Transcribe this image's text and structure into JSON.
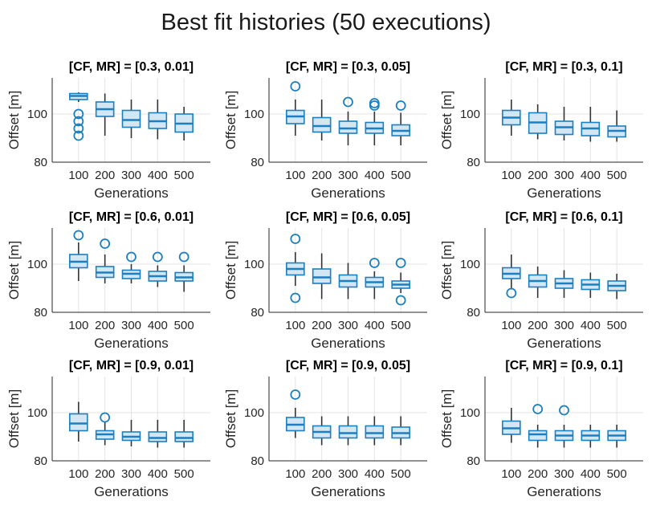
{
  "figure": {
    "title": "Best fit histories (50 executions)",
    "colors": {
      "box_face": "#d3e6f3",
      "box_edge": "#1c7fc0",
      "median": "#1c7fc0",
      "whisker": "#333333",
      "outlier": "#1c7fc0",
      "grid": "#e3e3e3",
      "axis": "#262626"
    }
  },
  "chart_data": [
    {
      "type": "box",
      "title": "[CF, MR] = [0.3, 0.01]",
      "xlabel": "Generations",
      "ylabel": "Offset [m]",
      "categories": [
        "100",
        "200",
        "300",
        "400",
        "500"
      ],
      "ylim": [
        80,
        115
      ],
      "yticks": [
        80,
        100
      ],
      "grid": true,
      "boxes": [
        {
          "whislo": 105,
          "q1": 106,
          "med": 107.5,
          "q3": 108.5,
          "whishi": 109,
          "fliers": [
            91,
            94,
            97,
            100
          ]
        },
        {
          "whislo": 91,
          "q1": 99,
          "med": 102,
          "q3": 105,
          "whishi": 108.5,
          "fliers": []
        },
        {
          "whislo": 90,
          "q1": 94.5,
          "med": 97.5,
          "q3": 101.5,
          "whishi": 106,
          "fliers": []
        },
        {
          "whislo": 89.5,
          "q1": 94,
          "med": 97,
          "q3": 100.5,
          "whishi": 106,
          "fliers": []
        },
        {
          "whislo": 89,
          "q1": 92.5,
          "med": 96,
          "q3": 100,
          "whishi": 103,
          "fliers": []
        }
      ]
    },
    {
      "type": "box",
      "title": "[CF, MR] = [0.3, 0.05]",
      "xlabel": "Generations",
      "ylabel": "Offset [m]",
      "categories": [
        "100",
        "200",
        "300",
        "400",
        "500"
      ],
      "ylim": [
        80,
        115
      ],
      "yticks": [
        80,
        100
      ],
      "grid": true,
      "boxes": [
        {
          "whislo": 91,
          "q1": 96,
          "med": 99,
          "q3": 101.5,
          "whishi": 106,
          "fliers": [
            111.5
          ]
        },
        {
          "whislo": 89,
          "q1": 92.5,
          "med": 95,
          "q3": 98.5,
          "whishi": 106,
          "fliers": []
        },
        {
          "whislo": 87,
          "q1": 92,
          "med": 94,
          "q3": 97,
          "whishi": 101,
          "fliers": [
            105
          ]
        },
        {
          "whislo": 87,
          "q1": 92,
          "med": 94,
          "q3": 96.5,
          "whishi": 101,
          "fliers": [
            103.5,
            104.5
          ]
        },
        {
          "whislo": 87,
          "q1": 91,
          "med": 93,
          "q3": 95.5,
          "whishi": 100.5,
          "fliers": [
            103.5
          ]
        }
      ]
    },
    {
      "type": "box",
      "title": "[CF, MR] = [0.3, 0.1]",
      "xlabel": "Generations",
      "ylabel": "Offset [m]",
      "categories": [
        "100",
        "200",
        "300",
        "400",
        "500"
      ],
      "ylim": [
        80,
        115
      ],
      "yticks": [
        80,
        100
      ],
      "grid": true,
      "boxes": [
        {
          "whislo": 91,
          "q1": 95.5,
          "med": 98.5,
          "q3": 101.5,
          "whishi": 106,
          "fliers": []
        },
        {
          "whislo": 89.5,
          "q1": 92,
          "med": 96.5,
          "q3": 100.5,
          "whishi": 104,
          "fliers": []
        },
        {
          "whislo": 89,
          "q1": 91.5,
          "med": 94.5,
          "q3": 97,
          "whishi": 103,
          "fliers": []
        },
        {
          "whislo": 88.5,
          "q1": 91,
          "med": 94,
          "q3": 96.5,
          "whishi": 103,
          "fliers": []
        },
        {
          "whislo": 88.5,
          "q1": 90.5,
          "med": 93,
          "q3": 95,
          "whishi": 101.5,
          "fliers": []
        }
      ]
    },
    {
      "type": "box",
      "title": "[CF, MR] = [0.6, 0.01]",
      "xlabel": "Generations",
      "ylabel": "Offset [m]",
      "categories": [
        "100",
        "200",
        "300",
        "400",
        "500"
      ],
      "ylim": [
        80,
        115
      ],
      "yticks": [
        80,
        100
      ],
      "grid": true,
      "boxes": [
        {
          "whislo": 93,
          "q1": 98.5,
          "med": 101,
          "q3": 104,
          "whishi": 109,
          "fliers": [
            112
          ]
        },
        {
          "whislo": 92,
          "q1": 94.5,
          "med": 96.5,
          "q3": 99,
          "whishi": 104,
          "fliers": [
            108.5
          ]
        },
        {
          "whislo": 92,
          "q1": 94,
          "med": 96,
          "q3": 97.5,
          "whishi": 100,
          "fliers": [
            103
          ]
        },
        {
          "whislo": 90.5,
          "q1": 93,
          "med": 95,
          "q3": 97,
          "whishi": 99.5,
          "fliers": [
            103
          ]
        },
        {
          "whislo": 88.5,
          "q1": 93,
          "med": 94.5,
          "q3": 96.5,
          "whishi": 99.5,
          "fliers": [
            103
          ]
        }
      ]
    },
    {
      "type": "box",
      "title": "[CF, MR] = [0.6, 0.05]",
      "xlabel": "Generations",
      "ylabel": "Offset [m]",
      "categories": [
        "100",
        "200",
        "300",
        "400",
        "500"
      ],
      "ylim": [
        80,
        115
      ],
      "yticks": [
        80,
        100
      ],
      "grid": true,
      "boxes": [
        {
          "whislo": 91,
          "q1": 95.5,
          "med": 98,
          "q3": 100.5,
          "whishi": 105,
          "fliers": [
            110.5,
            86
          ]
        },
        {
          "whislo": 85.5,
          "q1": 92,
          "med": 94.5,
          "q3": 98,
          "whishi": 104.5,
          "fliers": []
        },
        {
          "whislo": 85.5,
          "q1": 90.5,
          "med": 93,
          "q3": 95.5,
          "whishi": 100.5,
          "fliers": []
        },
        {
          "whislo": 85.5,
          "q1": 90.5,
          "med": 92.5,
          "q3": 94.5,
          "whishi": 97,
          "fliers": [
            100.5
          ]
        },
        {
          "whislo": 88,
          "q1": 90,
          "med": 91.5,
          "q3": 93,
          "whishi": 96.5,
          "fliers": [
            100.5,
            85
          ]
        }
      ]
    },
    {
      "type": "box",
      "title": "[CF, MR] = [0.6, 0.1]",
      "xlabel": "Generations",
      "ylabel": "Offset [m]",
      "categories": [
        "100",
        "200",
        "300",
        "400",
        "500"
      ],
      "ylim": [
        80,
        115
      ],
      "yticks": [
        80,
        100
      ],
      "grid": true,
      "boxes": [
        {
          "whislo": 89.5,
          "q1": 94,
          "med": 96,
          "q3": 98.5,
          "whishi": 104,
          "fliers": [
            88
          ]
        },
        {
          "whislo": 86,
          "q1": 90.5,
          "med": 93,
          "q3": 95.5,
          "whishi": 99,
          "fliers": []
        },
        {
          "whislo": 86,
          "q1": 90,
          "med": 92,
          "q3": 94,
          "whishi": 97.5,
          "fliers": []
        },
        {
          "whislo": 86,
          "q1": 89.5,
          "med": 91.5,
          "q3": 93.5,
          "whishi": 96.5,
          "fliers": []
        },
        {
          "whislo": 85.5,
          "q1": 89,
          "med": 91,
          "q3": 93,
          "whishi": 96,
          "fliers": []
        }
      ]
    },
    {
      "type": "box",
      "title": "[CF, MR] = [0.9, 0.01]",
      "xlabel": "Generations",
      "ylabel": "Offset [m]",
      "categories": [
        "100",
        "200",
        "300",
        "400",
        "500"
      ],
      "ylim": [
        80,
        115
      ],
      "yticks": [
        80,
        100
      ],
      "grid": true,
      "boxes": [
        {
          "whislo": 88,
          "q1": 92.5,
          "med": 95.5,
          "q3": 99.5,
          "whishi": 104.5,
          "fliers": []
        },
        {
          "whislo": 86.5,
          "q1": 89,
          "med": 91,
          "q3": 92.5,
          "whishi": 96,
          "fliers": [
            98
          ]
        },
        {
          "whislo": 86,
          "q1": 88.5,
          "med": 90,
          "q3": 92,
          "whishi": 97,
          "fliers": []
        },
        {
          "whislo": 85.5,
          "q1": 88,
          "med": 89.5,
          "q3": 92,
          "whishi": 97,
          "fliers": []
        },
        {
          "whislo": 85.5,
          "q1": 88,
          "med": 89.5,
          "q3": 92,
          "whishi": 97,
          "fliers": []
        }
      ]
    },
    {
      "type": "box",
      "title": "[CF, MR] = [0.9, 0.05]",
      "xlabel": "Generations",
      "ylabel": "Offset [m]",
      "categories": [
        "100",
        "200",
        "300",
        "400",
        "500"
      ],
      "ylim": [
        80,
        115
      ],
      "yticks": [
        80,
        100
      ],
      "grid": true,
      "boxes": [
        {
          "whislo": 89.5,
          "q1": 92.5,
          "med": 95,
          "q3": 98,
          "whishi": 102,
          "fliers": [
            107.5
          ]
        },
        {
          "whislo": 86.5,
          "q1": 89.5,
          "med": 92,
          "q3": 94.5,
          "whishi": 98.5,
          "fliers": []
        },
        {
          "whislo": 86.5,
          "q1": 89.5,
          "med": 91.5,
          "q3": 94.5,
          "whishi": 98.5,
          "fliers": []
        },
        {
          "whislo": 86.5,
          "q1": 89.5,
          "med": 91.5,
          "q3": 94.5,
          "whishi": 98.5,
          "fliers": []
        },
        {
          "whislo": 86.5,
          "q1": 89.5,
          "med": 91.5,
          "q3": 94,
          "whishi": 98.5,
          "fliers": []
        }
      ]
    },
    {
      "type": "box",
      "title": "[CF, MR] = [0.9, 0.1]",
      "xlabel": "Generations",
      "ylabel": "Offset [m]",
      "categories": [
        "100",
        "200",
        "300",
        "400",
        "500"
      ],
      "ylim": [
        80,
        115
      ],
      "yticks": [
        80,
        100
      ],
      "grid": true,
      "boxes": [
        {
          "whislo": 87.5,
          "q1": 91,
          "med": 93.5,
          "q3": 96.5,
          "whishi": 102,
          "fliers": []
        },
        {
          "whislo": 85.5,
          "q1": 88.5,
          "med": 91,
          "q3": 92.5,
          "whishi": 95,
          "fliers": [
            101.5
          ]
        },
        {
          "whislo": 85.5,
          "q1": 88.5,
          "med": 90.5,
          "q3": 92.5,
          "whishi": 95,
          "fliers": [
            101
          ]
        },
        {
          "whislo": 85.5,
          "q1": 88.5,
          "med": 90.5,
          "q3": 92.5,
          "whishi": 95,
          "fliers": []
        },
        {
          "whislo": 85.5,
          "q1": 88.5,
          "med": 90.5,
          "q3": 92.5,
          "whishi": 95,
          "fliers": []
        }
      ]
    }
  ]
}
